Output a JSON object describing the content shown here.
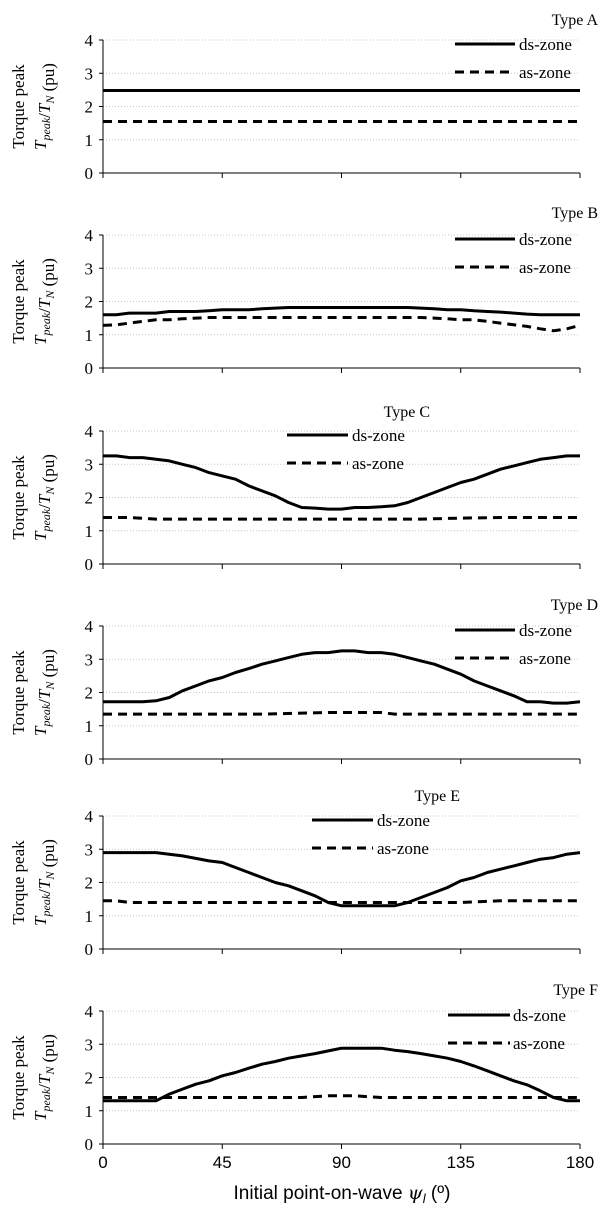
{
  "chart_data": [
    {
      "type": "line",
      "title": "Type A",
      "ylabel": "Torque peak",
      "ylabel2": "T_peak/T_N (pu)",
      "ylim": [
        0,
        4
      ],
      "yticks": [
        "0",
        "1",
        "2",
        "3",
        "4"
      ],
      "xlim": [
        0,
        180
      ],
      "legend_position": "top-right",
      "series": [
        {
          "name": "ds-zone",
          "style": "solid",
          "x": [
            0,
            180
          ],
          "y": [
            2.48,
            2.48
          ]
        },
        {
          "name": "as-zone",
          "style": "dashed",
          "x": [
            0,
            180
          ],
          "y": [
            1.55,
            1.55
          ]
        }
      ]
    },
    {
      "type": "line",
      "title": "Type B",
      "ylabel": "Torque peak",
      "ylabel2": "T_peak/T_N (pu)",
      "ylim": [
        0,
        4
      ],
      "yticks": [
        "0",
        "1",
        "2",
        "3",
        "4"
      ],
      "xlim": [
        0,
        180
      ],
      "legend_position": "top-right",
      "series": [
        {
          "name": "ds-zone",
          "style": "solid",
          "x": [
            0,
            5,
            10,
            15,
            20,
            25,
            30,
            35,
            40,
            45,
            50,
            55,
            60,
            65,
            70,
            75,
            80,
            85,
            90,
            95,
            100,
            105,
            110,
            115,
            120,
            125,
            130,
            135,
            140,
            145,
            150,
            155,
            160,
            165,
            170,
            175,
            180
          ],
          "y": [
            1.6,
            1.6,
            1.65,
            1.65,
            1.65,
            1.7,
            1.7,
            1.7,
            1.72,
            1.75,
            1.75,
            1.75,
            1.78,
            1.8,
            1.82,
            1.82,
            1.82,
            1.82,
            1.82,
            1.82,
            1.82,
            1.82,
            1.82,
            1.82,
            1.8,
            1.78,
            1.75,
            1.75,
            1.72,
            1.7,
            1.68,
            1.65,
            1.62,
            1.6,
            1.6,
            1.6,
            1.6
          ]
        },
        {
          "name": "as-zone",
          "style": "dashed",
          "x": [
            0,
            5,
            10,
            15,
            20,
            25,
            30,
            35,
            40,
            45,
            50,
            55,
            60,
            65,
            70,
            75,
            80,
            85,
            90,
            95,
            100,
            105,
            110,
            115,
            120,
            125,
            130,
            135,
            140,
            145,
            150,
            155,
            160,
            165,
            170,
            175,
            180
          ],
          "y": [
            1.28,
            1.3,
            1.35,
            1.4,
            1.45,
            1.45,
            1.48,
            1.5,
            1.52,
            1.52,
            1.52,
            1.52,
            1.52,
            1.52,
            1.52,
            1.52,
            1.52,
            1.52,
            1.52,
            1.52,
            1.52,
            1.52,
            1.52,
            1.52,
            1.52,
            1.5,
            1.48,
            1.45,
            1.45,
            1.4,
            1.35,
            1.3,
            1.25,
            1.18,
            1.12,
            1.18,
            1.28
          ]
        }
      ]
    },
    {
      "type": "line",
      "title": "Type C",
      "ylabel": "Torque peak",
      "ylabel2": "T_peak/T_N (pu)",
      "ylim": [
        0,
        4
      ],
      "yticks": [
        "0",
        "1",
        "2",
        "3",
        "4"
      ],
      "xlim": [
        0,
        180
      ],
      "legend_position": "top-center",
      "series": [
        {
          "name": "ds-zone",
          "style": "solid",
          "x": [
            0,
            5,
            10,
            15,
            20,
            25,
            30,
            35,
            40,
            45,
            50,
            55,
            60,
            65,
            70,
            75,
            80,
            85,
            90,
            95,
            100,
            105,
            110,
            115,
            120,
            125,
            130,
            135,
            140,
            145,
            150,
            155,
            160,
            165,
            170,
            175,
            180
          ],
          "y": [
            3.25,
            3.25,
            3.2,
            3.2,
            3.15,
            3.1,
            3.0,
            2.9,
            2.75,
            2.65,
            2.55,
            2.35,
            2.2,
            2.05,
            1.85,
            1.7,
            1.68,
            1.65,
            1.65,
            1.7,
            1.7,
            1.72,
            1.75,
            1.85,
            2.0,
            2.15,
            2.3,
            2.45,
            2.55,
            2.7,
            2.85,
            2.95,
            3.05,
            3.15,
            3.2,
            3.25,
            3.25
          ]
        },
        {
          "name": "as-zone",
          "style": "dashed",
          "x": [
            0,
            10,
            20,
            30,
            45,
            60,
            75,
            90,
            105,
            120,
            135,
            150,
            165,
            180
          ],
          "y": [
            1.4,
            1.4,
            1.35,
            1.35,
            1.35,
            1.35,
            1.35,
            1.35,
            1.35,
            1.35,
            1.38,
            1.4,
            1.4,
            1.4
          ]
        }
      ]
    },
    {
      "type": "line",
      "title": "Type D",
      "ylabel": "Torque peak",
      "ylabel2": "T_peak/T_N (pu)",
      "ylim": [
        0,
        4
      ],
      "yticks": [
        "0",
        "1",
        "2",
        "3",
        "4"
      ],
      "xlim": [
        0,
        180
      ],
      "legend_position": "top-right",
      "series": [
        {
          "name": "ds-zone",
          "style": "solid",
          "x": [
            0,
            5,
            10,
            15,
            20,
            25,
            30,
            35,
            40,
            45,
            50,
            55,
            60,
            65,
            70,
            75,
            80,
            85,
            90,
            95,
            100,
            105,
            110,
            115,
            120,
            125,
            130,
            135,
            140,
            145,
            150,
            155,
            160,
            165,
            170,
            175,
            180
          ],
          "y": [
            1.72,
            1.72,
            1.72,
            1.72,
            1.75,
            1.85,
            2.05,
            2.2,
            2.35,
            2.45,
            2.6,
            2.72,
            2.85,
            2.95,
            3.05,
            3.15,
            3.2,
            3.2,
            3.25,
            3.25,
            3.2,
            3.2,
            3.15,
            3.05,
            2.95,
            2.85,
            2.7,
            2.55,
            2.35,
            2.2,
            2.05,
            1.9,
            1.72,
            1.72,
            1.68,
            1.68,
            1.72
          ]
        },
        {
          "name": "as-zone",
          "style": "dashed",
          "x": [
            0,
            15,
            30,
            45,
            60,
            75,
            85,
            95,
            105,
            110,
            120,
            135,
            150,
            165,
            180
          ],
          "y": [
            1.35,
            1.35,
            1.35,
            1.35,
            1.35,
            1.38,
            1.4,
            1.4,
            1.4,
            1.35,
            1.35,
            1.35,
            1.35,
            1.35,
            1.35
          ]
        }
      ]
    },
    {
      "type": "line",
      "title": "Type E",
      "ylabel": "Torque peak",
      "ylabel2": "T_peak/T_N (pu)",
      "ylim": [
        0,
        4
      ],
      "yticks": [
        "0",
        "1",
        "2",
        "3",
        "4"
      ],
      "xlim": [
        0,
        180
      ],
      "legend_position": "top-center",
      "series": [
        {
          "name": "ds-zone",
          "style": "solid",
          "x": [
            0,
            10,
            20,
            30,
            40,
            45,
            50,
            55,
            60,
            65,
            70,
            75,
            80,
            85,
            90,
            95,
            100,
            105,
            110,
            115,
            120,
            125,
            130,
            135,
            140,
            145,
            150,
            155,
            160,
            165,
            170,
            175,
            180
          ],
          "y": [
            2.9,
            2.9,
            2.9,
            2.8,
            2.65,
            2.6,
            2.45,
            2.3,
            2.15,
            2.0,
            1.9,
            1.75,
            1.6,
            1.4,
            1.3,
            1.3,
            1.3,
            1.3,
            1.3,
            1.4,
            1.55,
            1.7,
            1.85,
            2.05,
            2.15,
            2.3,
            2.4,
            2.5,
            2.6,
            2.7,
            2.75,
            2.85,
            2.9
          ]
        },
        {
          "name": "as-zone",
          "style": "dashed",
          "x": [
            0,
            5,
            10,
            20,
            45,
            60,
            75,
            90,
            105,
            120,
            135,
            150,
            165,
            180
          ],
          "y": [
            1.45,
            1.45,
            1.4,
            1.4,
            1.4,
            1.4,
            1.4,
            1.4,
            1.4,
            1.4,
            1.4,
            1.45,
            1.45,
            1.45
          ]
        }
      ]
    },
    {
      "type": "line",
      "title": "Type F",
      "ylabel": "Torque peak",
      "ylabel2": "T_peak/T_N (pu)",
      "ylim": [
        0,
        4
      ],
      "yticks": [
        "0",
        "1",
        "2",
        "3",
        "4"
      ],
      "xlim": [
        0,
        180
      ],
      "xticks": [
        "0",
        "45",
        "90",
        "135",
        "180"
      ],
      "xlabel": "Initial point-on-wave ψ_l (º)",
      "legend_position": "top-right",
      "series": [
        {
          "name": "ds-zone",
          "style": "solid",
          "x": [
            0,
            10,
            20,
            25,
            30,
            35,
            40,
            45,
            50,
            55,
            60,
            65,
            70,
            75,
            80,
            85,
            90,
            95,
            100,
            105,
            110,
            115,
            120,
            125,
            130,
            135,
            140,
            145,
            150,
            155,
            160,
            165,
            170,
            175,
            180
          ],
          "y": [
            1.3,
            1.3,
            1.3,
            1.5,
            1.65,
            1.8,
            1.9,
            2.05,
            2.15,
            2.28,
            2.4,
            2.48,
            2.58,
            2.65,
            2.72,
            2.8,
            2.88,
            2.88,
            2.88,
            2.88,
            2.82,
            2.78,
            2.72,
            2.65,
            2.58,
            2.48,
            2.35,
            2.2,
            2.05,
            1.9,
            1.78,
            1.6,
            1.4,
            1.3,
            1.3
          ]
        },
        {
          "name": "as-zone",
          "style": "dashed",
          "x": [
            0,
            15,
            30,
            45,
            60,
            75,
            85,
            95,
            105,
            120,
            135,
            150,
            165,
            180
          ],
          "y": [
            1.4,
            1.4,
            1.4,
            1.4,
            1.4,
            1.4,
            1.45,
            1.45,
            1.4,
            1.4,
            1.4,
            1.4,
            1.4,
            1.4
          ]
        }
      ]
    }
  ]
}
